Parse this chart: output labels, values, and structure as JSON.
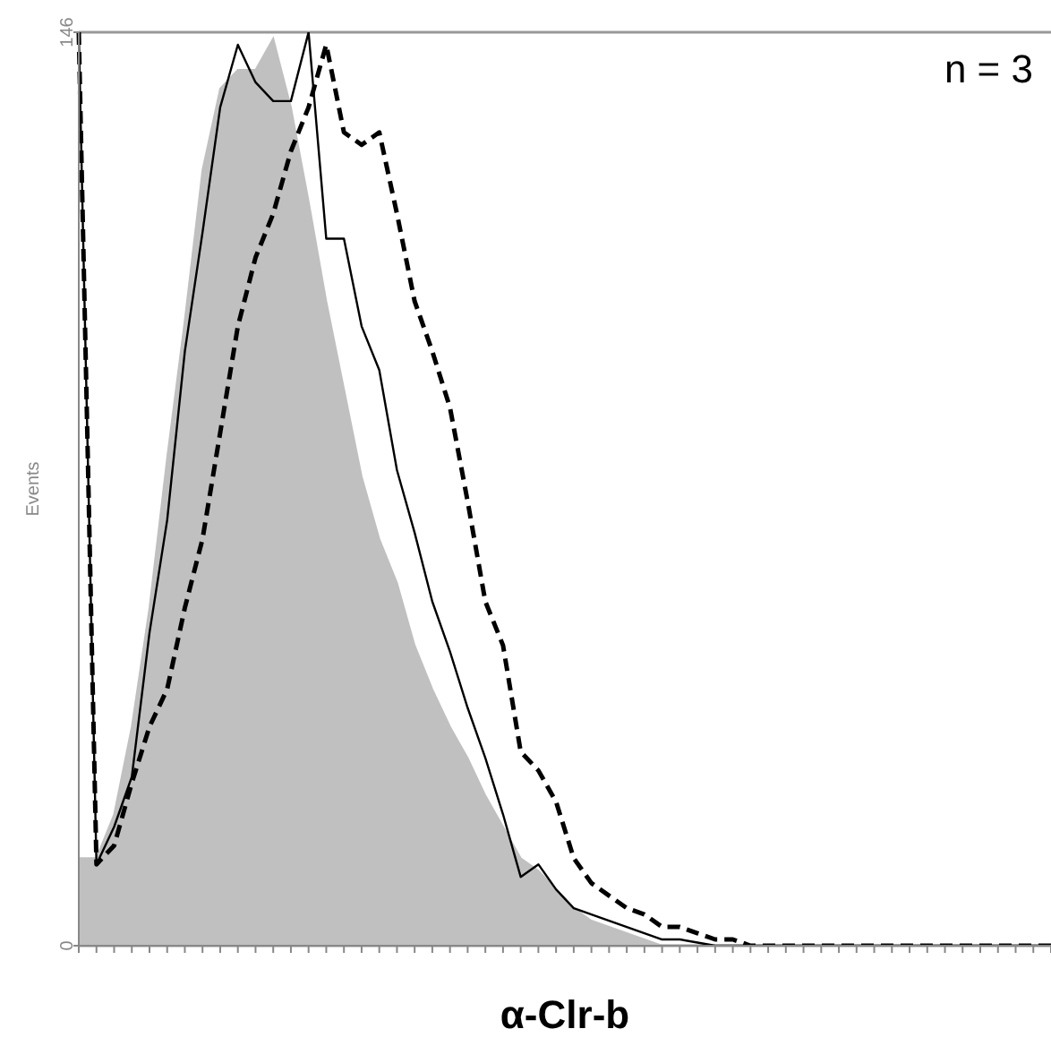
{
  "chart_data": {
    "type": "line",
    "xlabel": "α-Clr-b",
    "ylabel": "Events",
    "annotations": [
      "n = 3"
    ],
    "categories": [
      null,
      null,
      null,
      null,
      null,
      null,
      null,
      null,
      null,
      null,
      null,
      null,
      null,
      null,
      null,
      null,
      null,
      null,
      null,
      null,
      null,
      null,
      null,
      null,
      null,
      null,
      null,
      null,
      null,
      null,
      null,
      null,
      null,
      null,
      null,
      null,
      null,
      null,
      null,
      null,
      null,
      null,
      null,
      null,
      null,
      null,
      null,
      null,
      null,
      null,
      null,
      null,
      null,
      null,
      null,
      null
    ],
    "series": [
      {
        "type": "area",
        "color": "#c0c0c0",
        "values": [
          14,
          14,
          21,
          35,
          54,
          78,
          100,
          124,
          137,
          140,
          140,
          145,
          134,
          119,
          103,
          89,
          75,
          65,
          58,
          48,
          41,
          35,
          30,
          24,
          19,
          14,
          12,
          9,
          6,
          4,
          3,
          2,
          1,
          0,
          0,
          0,
          0,
          0,
          0,
          0,
          0,
          0,
          0,
          0,
          0,
          0,
          0,
          0,
          0,
          0,
          0,
          0,
          0,
          0,
          0,
          0
        ]
      },
      {
        "color": "#000000",
        "line_style": "solid",
        "values": [
          146,
          13,
          19,
          27,
          50,
          68,
          95,
          114,
          134,
          144,
          138,
          135,
          135,
          146,
          113,
          113,
          99,
          92,
          76,
          66,
          55,
          47,
          38,
          30,
          21,
          11,
          13,
          9,
          6,
          5,
          4,
          3,
          2,
          1,
          1,
          0.5,
          0,
          0,
          0,
          0,
          0,
          0,
          0,
          0,
          0,
          0,
          0,
          0,
          0,
          0,
          0,
          0,
          0,
          0,
          0,
          0
        ]
      },
      {
        "color": "#000000",
        "line_style": "dashed",
        "values": [
          146,
          13,
          16,
          26,
          35,
          41,
          54,
          65,
          82,
          99,
          110,
          117,
          127,
          134,
          144,
          130,
          128,
          130,
          117,
          103,
          95,
          86,
          71,
          55,
          48,
          31,
          28,
          23,
          14,
          10,
          8,
          6,
          5,
          3,
          3,
          2,
          1,
          1,
          0,
          0,
          0,
          0,
          0,
          0,
          0,
          0,
          0,
          0,
          0,
          0,
          0,
          0,
          0,
          0,
          0,
          0
        ]
      }
    ],
    "ylim": [
      0,
      146
    ],
    "yticks": [
      0,
      146
    ],
    "grid": "y",
    "legend": false,
    "marker": "none"
  }
}
